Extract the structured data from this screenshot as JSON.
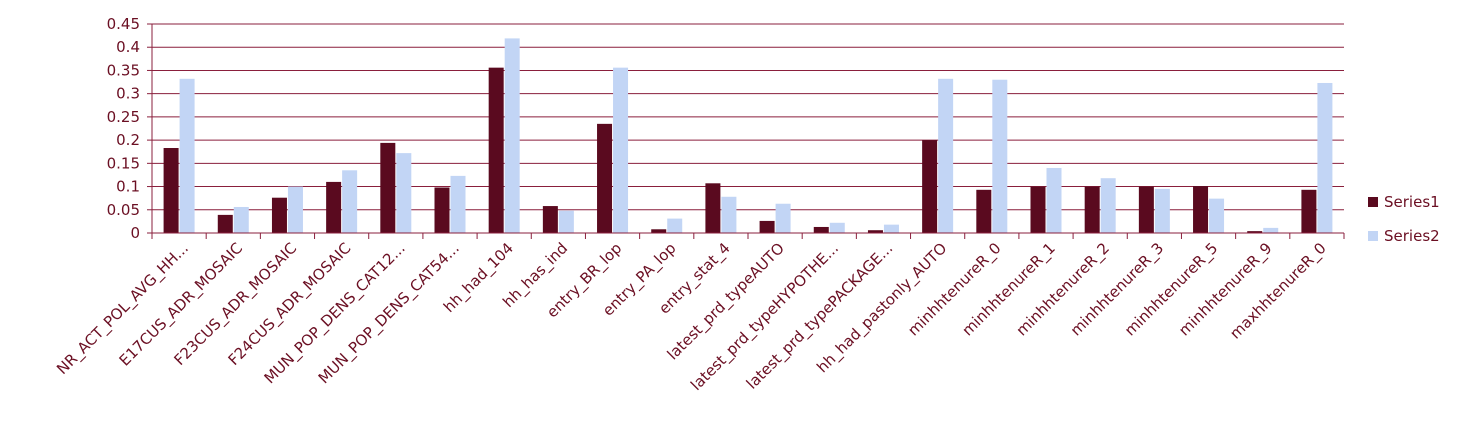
{
  "chart_data": {
    "type": "bar",
    "title": "",
    "xlabel": "",
    "ylabel": "",
    "ylim": [
      0,
      0.45
    ],
    "yticks": [
      "0",
      "0.05",
      "0.1",
      "0.15",
      "0.2",
      "0.25",
      "0.3",
      "0.35",
      "0.4",
      "0.45"
    ],
    "grid": true,
    "legend_position": "right",
    "categories": [
      "NR_ACT_POL_AVG_HH...",
      "E17CUS_ADR_MOSAIC",
      "F23CUS_ADR_MOSAIC",
      "F24CUS_ADR_MOSAIC",
      "MUN_POP_DENS_CAT12...",
      "MUN_POP_DENS_CAT54...",
      "hh_had_104",
      "hh_has_ind",
      "entry_BR_lop",
      "entry_PA_lop",
      "entry_stat_4",
      "latest_prd_typeAUTO",
      "latest_prd_typeHYPOTHE...",
      "latest_prd_typePACKAGE...",
      "hh_had_pastonly_AUTO",
      "minhhtenureR_0",
      "minhhtenureR_1",
      "minhhtenureR_2",
      "minhhtenureR_3",
      "minhhtenureR_5",
      "minhhtenureR_9",
      "maxhhtenureR_0"
    ],
    "series": [
      {
        "name": "Series1",
        "color": "#5a0a1f",
        "values": [
          0.183,
          0.039,
          0.076,
          0.11,
          0.194,
          0.098,
          0.356,
          0.058,
          0.235,
          0.008,
          0.107,
          0.026,
          0.013,
          0.006,
          0.2,
          0.093,
          0.1,
          0.1,
          0.1,
          0.101,
          0.004,
          0.093
        ]
      },
      {
        "name": "Series2",
        "color": "#c2d5f5",
        "values": [
          0.332,
          0.056,
          0.1,
          0.135,
          0.172,
          0.123,
          0.419,
          0.048,
          0.356,
          0.031,
          0.078,
          0.063,
          0.022,
          0.018,
          0.332,
          0.33,
          0.14,
          0.118,
          0.095,
          0.074,
          0.011,
          0.323
        ]
      }
    ]
  }
}
